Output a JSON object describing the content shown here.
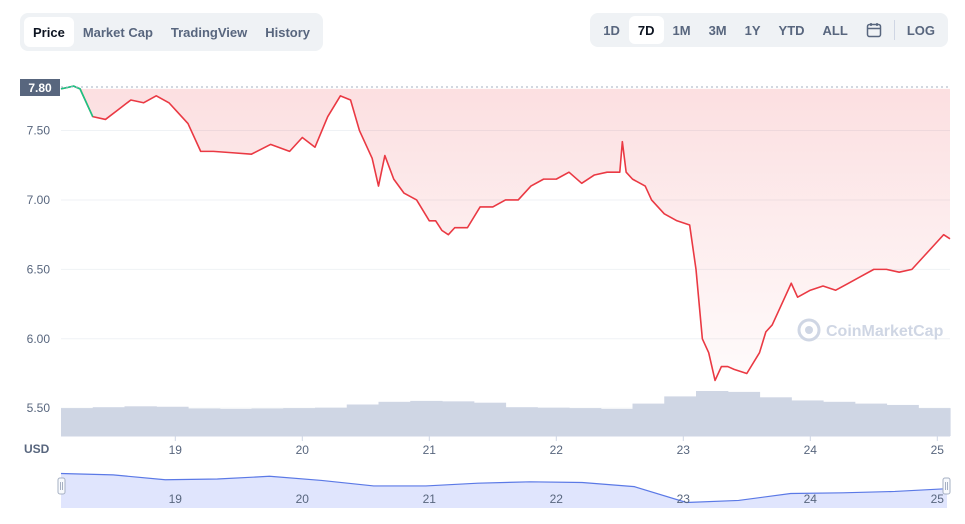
{
  "tabs": [
    "Price",
    "Market Cap",
    "TradingView",
    "History"
  ],
  "active_tab": "Price",
  "ranges": [
    "1D",
    "7D",
    "1M",
    "3M",
    "1Y",
    "YTD",
    "ALL"
  ],
  "active_range": "7D",
  "log_label": "LOG",
  "calendar_icon": "calendar-icon",
  "currency_label": "USD",
  "watermark": "CoinMarketCap",
  "current_price_label": "7.80",
  "colors": {
    "down_line": "#ea3943",
    "up_line": "#16c784",
    "volume": "#cfd6e4",
    "navigator_fill": "#e0e5fd",
    "navigator_line": "#5b79e6"
  },
  "chart_data": {
    "type": "line",
    "ylim": [
      5.3,
      7.9
    ],
    "yticks": [
      5.5,
      6.0,
      6.5,
      7.0,
      7.5
    ],
    "ytick_labels": [
      "5.50",
      "6.00",
      "6.50",
      "7.00",
      "7.50"
    ],
    "xlim": [
      18.1,
      25.1
    ],
    "xticks": [
      19,
      20,
      21,
      22,
      23,
      24,
      25
    ],
    "xtick_labels": [
      "19",
      "20",
      "21",
      "22",
      "23",
      "24",
      "25"
    ],
    "reference_price": 7.8,
    "series": [
      {
        "x": [
          18.1,
          18.2,
          18.25,
          18.35,
          18.45,
          18.55,
          18.65,
          18.75,
          18.85,
          18.95,
          19.0,
          19.1,
          19.2,
          19.3,
          19.45,
          19.6,
          19.75,
          19.9,
          20.0,
          20.1,
          20.2,
          20.3,
          20.38,
          20.45,
          20.55,
          20.6,
          20.65,
          20.72,
          20.8,
          20.9,
          21.0,
          21.05,
          21.1,
          21.15,
          21.2,
          21.3,
          21.4,
          21.5,
          21.6,
          21.7,
          21.8,
          21.9,
          22.0,
          22.1,
          22.2,
          22.3,
          22.4,
          22.5,
          22.52,
          22.55,
          22.6,
          22.7,
          22.75,
          22.85,
          22.95,
          23.05,
          23.1,
          23.15,
          23.2,
          23.25,
          23.3,
          23.35,
          23.4,
          23.5,
          23.6,
          23.65,
          23.7,
          23.8,
          23.85,
          23.9,
          24.0,
          24.1,
          24.2,
          24.3,
          24.4,
          24.5,
          24.6,
          24.7,
          24.8,
          24.9,
          25.0,
          25.05,
          25.1
        ],
        "y": [
          7.8,
          7.82,
          7.8,
          7.6,
          7.58,
          7.65,
          7.72,
          7.7,
          7.75,
          7.7,
          7.65,
          7.55,
          7.35,
          7.35,
          7.34,
          7.33,
          7.4,
          7.35,
          7.45,
          7.38,
          7.6,
          7.75,
          7.72,
          7.5,
          7.3,
          7.1,
          7.32,
          7.15,
          7.05,
          7.0,
          6.85,
          6.85,
          6.78,
          6.75,
          6.8,
          6.8,
          6.95,
          6.95,
          7.0,
          7.0,
          7.1,
          7.15,
          7.15,
          7.2,
          7.12,
          7.18,
          7.2,
          7.2,
          7.42,
          7.2,
          7.15,
          7.1,
          7.0,
          6.9,
          6.85,
          6.82,
          6.5,
          6.0,
          5.9,
          5.7,
          5.8,
          5.8,
          5.78,
          5.75,
          5.9,
          6.05,
          6.1,
          6.3,
          6.4,
          6.3,
          6.35,
          6.38,
          6.35,
          6.4,
          6.45,
          6.5,
          6.5,
          6.48,
          6.5,
          6.6,
          6.7,
          6.75,
          6.72
        ]
      }
    ],
    "volume_relative": [
      0.62,
      0.64,
      0.66,
      0.65,
      0.61,
      0.6,
      0.61,
      0.62,
      0.63,
      0.7,
      0.76,
      0.78,
      0.77,
      0.74,
      0.64,
      0.63,
      0.62,
      0.6,
      0.72,
      0.88,
      1.0,
      0.98,
      0.86,
      0.79,
      0.76,
      0.72,
      0.69,
      0.62
    ],
    "navigator": {
      "xtick_labels": [
        "19",
        "20",
        "21",
        "22",
        "23",
        "24",
        "25"
      ],
      "y": [
        7.8,
        7.7,
        7.35,
        7.4,
        7.6,
        7.3,
        6.9,
        6.9,
        7.1,
        7.2,
        7.15,
        6.85,
        5.7,
        5.85,
        6.35,
        6.4,
        6.5,
        6.7
      ]
    }
  }
}
